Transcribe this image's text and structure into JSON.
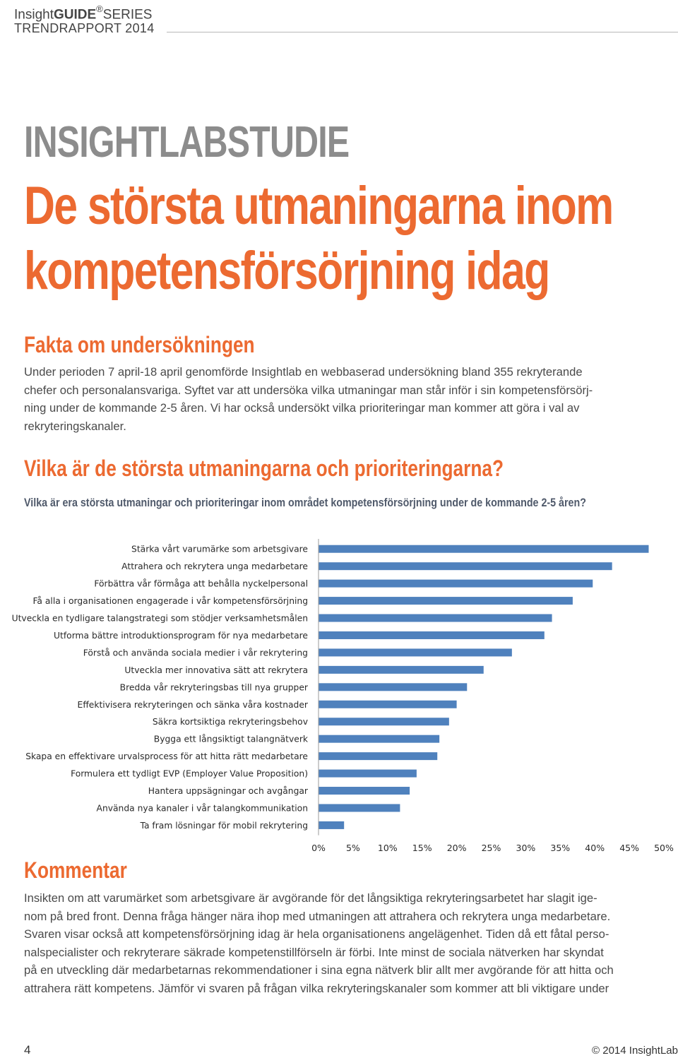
{
  "header": {
    "brand_insight": "Insight",
    "brand_guide": "GUIDE",
    "brand_reg": "®",
    "brand_series": "SERIES",
    "subtitle": "TRENDRAPPORT 2014"
  },
  "kicker": "INSIGHTLABSTUDIE",
  "title_line1": "De största utmaningarna inom",
  "title_line2": "kompetensförsörjning idag",
  "facts": {
    "heading": "Fakta om undersökningen",
    "lines": [
      "Under perioden 7 april-18 april genomförde Insightlab en webbaserad undersökning bland 355 rekryterande",
      "chefer och personalansvariga. Syftet var att undersöka vilka utmaningar man står inför i sin kompetensförsörj-",
      "ning under de kommande 2-5 åren. Vi har också undersökt vilka prioriteringar man kommer att göra i val av",
      "rekryteringskanaler."
    ]
  },
  "section": {
    "heading": "Vilka är de största utmaningarna och prioriteringarna?",
    "question": "Vilka är era största utmaningar och prioriteringar inom området kompetensförsörjning under de kommande 2-5 åren?"
  },
  "chart_data": {
    "type": "bar",
    "orientation": "horizontal",
    "categories": [
      "Stärka vårt varumärke som arbetsgivare",
      "Attrahera och rekrytera unga medarbetare",
      "Förbättra vår förmåga att behålla nyckelpersonal",
      "Få alla i organisationen engagerade i vår kompetensförsörjning",
      "Utveckla en tydligare talangstrategi som stödjer verksamhetsmålen",
      "Utforma bättre introduktionsprogram för nya medarbetare",
      "Förstå och använda sociala medier i vår rekrytering",
      "Utveckla mer innovativa sätt att rekrytera",
      "Bredda vår rekryteringsbas till nya grupper",
      "Effektivisera rekryteringen och sänka våra kostnader",
      "Säkra kortsiktiga rekryteringsbehov",
      "Bygga ett långsiktigt talangnätverk",
      "Skapa en effektivare urvalsprocess för att hitta rätt medarbetare",
      "Formulera ett tydligt EVP (Employer Value Proposition)",
      "Hantera uppsägningar och avgångar",
      "Använda nya kanaler i vår talangkommunikation",
      "Ta fram lösningar för mobil rekrytering"
    ],
    "values": [
      47.8,
      42.5,
      39.7,
      36.8,
      33.8,
      32.7,
      28.0,
      23.9,
      21.5,
      20.0,
      18.9,
      17.5,
      17.2,
      14.2,
      13.2,
      11.8,
      3.7
    ],
    "xlim": [
      0,
      50
    ],
    "xticks": [
      "0%",
      "5%",
      "10%",
      "15%",
      "20%",
      "25%",
      "30%",
      "35%",
      "40%",
      "45%",
      "50%"
    ],
    "bar_color": "#4f81bd",
    "grid": false
  },
  "comment": {
    "heading": "Kommentar",
    "lines": [
      "Insikten om att varumärket som arbetsgivare är avgörande för det långsiktiga rekryteringsarbetet har slagit ige-",
      "nom på bred front. Denna fråga hänger nära ihop med utmaningen att attrahera och rekrytera unga medarbetare.",
      "Svaren visar också att kompetensförsörjning idag är hela organisationens angelägenhet. Tiden då ett fåtal perso-",
      "nalspecialister och rekryterare säkrade kompetenstillförseln är förbi. Inte minst de sociala nätverken har skyndat",
      "på en utveckling där medarbetarnas rekommendationer i sina egna nätverk blir allt mer avgörande för att hitta och",
      "attrahera rätt kompetens. Jämför vi svaren på frågan vilka rekryteringskanaler som kommer att bli viktigare under"
    ]
  },
  "footer": {
    "page_number": "4",
    "copyright": "© 2014 InsightLab"
  }
}
